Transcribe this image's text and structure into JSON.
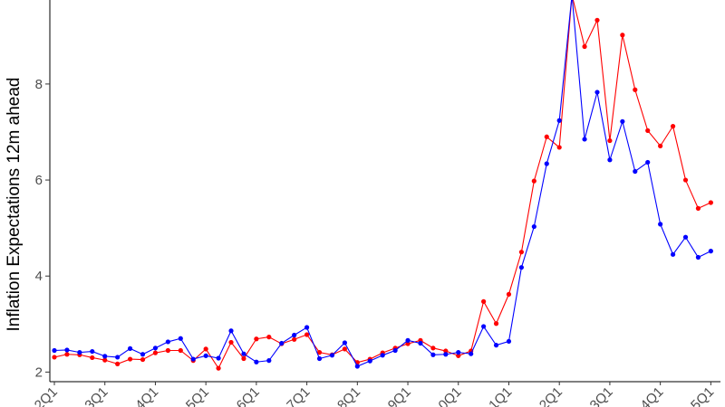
{
  "chart_data": {
    "type": "line",
    "title": "",
    "xlabel": "",
    "ylabel": "Inflation Expectations 12m ahead",
    "ylim": [
      1.8,
      9.75
    ],
    "yticks": [
      2,
      4,
      6,
      8
    ],
    "grid": false,
    "legend": "none",
    "x": [
      "2012Q1",
      "2012Q2",
      "2012Q3",
      "2012Q4",
      "2013Q1",
      "2013Q2",
      "2013Q3",
      "2013Q4",
      "2014Q1",
      "2014Q2",
      "2014Q3",
      "2014Q4",
      "2015Q1",
      "2015Q2",
      "2015Q3",
      "2015Q4",
      "2016Q1",
      "2016Q2",
      "2016Q3",
      "2016Q4",
      "2017Q1",
      "2017Q2",
      "2017Q3",
      "2017Q4",
      "2018Q1",
      "2018Q2",
      "2018Q3",
      "2018Q4",
      "2019Q1",
      "2019Q2",
      "2019Q3",
      "2019Q4",
      "2020Q1",
      "2020Q2",
      "2020Q3",
      "2020Q4",
      "2021Q1",
      "2021Q2",
      "2021Q3",
      "2021Q4",
      "2022Q1",
      "2022Q2",
      "2022Q3",
      "2022Q4",
      "2023Q1",
      "2023Q2",
      "2023Q3",
      "2023Q4",
      "2024Q1",
      "2024Q2",
      "2024Q3",
      "2024Q4",
      "2025Q1",
      "2025Q2"
    ],
    "xtick_labels": [
      {
        "index": 0,
        "label": "2Q1"
      },
      {
        "index": 4,
        "label": "3Q1"
      },
      {
        "index": 8,
        "label": "4Q1"
      },
      {
        "index": 12,
        "label": "5Q1"
      },
      {
        "index": 16,
        "label": "6Q1"
      },
      {
        "index": 20,
        "label": "7Q1"
      },
      {
        "index": 24,
        "label": "8Q1"
      },
      {
        "index": 28,
        "label": "9Q1"
      },
      {
        "index": 32,
        "label": "0Q1"
      },
      {
        "index": 36,
        "label": "1Q1"
      },
      {
        "index": 40,
        "label": "2Q1"
      },
      {
        "index": 44,
        "label": "3Q1"
      },
      {
        "index": 48,
        "label": "4Q1"
      },
      {
        "index": 52,
        "label": "5Q1"
      }
    ],
    "series": [
      {
        "color": "#ff0000",
        "values": [
          2.31,
          2.37,
          2.36,
          2.3,
          2.25,
          2.17,
          2.27,
          2.26,
          2.4,
          2.45,
          2.45,
          2.24,
          2.48,
          2.08,
          2.62,
          2.28,
          2.69,
          2.73,
          2.59,
          2.68,
          2.78,
          2.41,
          2.36,
          2.48,
          2.2,
          2.27,
          2.4,
          2.5,
          2.59,
          2.66,
          2.5,
          2.44,
          2.34,
          2.44,
          3.47,
          3.01,
          3.62,
          4.5,
          5.98,
          6.9,
          6.68,
          9.85,
          8.78,
          9.33,
          6.82,
          9.02,
          7.88,
          7.03,
          6.71,
          7.12,
          6.0,
          5.41,
          5.53,
          null
        ]
      },
      {
        "color": "#0000ff",
        "values": [
          2.45,
          2.46,
          2.41,
          2.43,
          2.33,
          2.31,
          2.49,
          2.37,
          2.5,
          2.63,
          2.7,
          2.27,
          2.34,
          2.29,
          2.86,
          2.38,
          2.21,
          2.24,
          2.6,
          2.77,
          2.93,
          2.28,
          2.35,
          2.61,
          2.12,
          2.23,
          2.35,
          2.45,
          2.66,
          2.6,
          2.36,
          2.37,
          2.41,
          2.38,
          2.95,
          2.56,
          2.64,
          4.18,
          5.03,
          6.34,
          7.24,
          9.85,
          6.85,
          7.83,
          6.42,
          7.22,
          6.18,
          6.37,
          5.08,
          4.45,
          4.81,
          4.39,
          4.52,
          null
        ]
      }
    ]
  }
}
